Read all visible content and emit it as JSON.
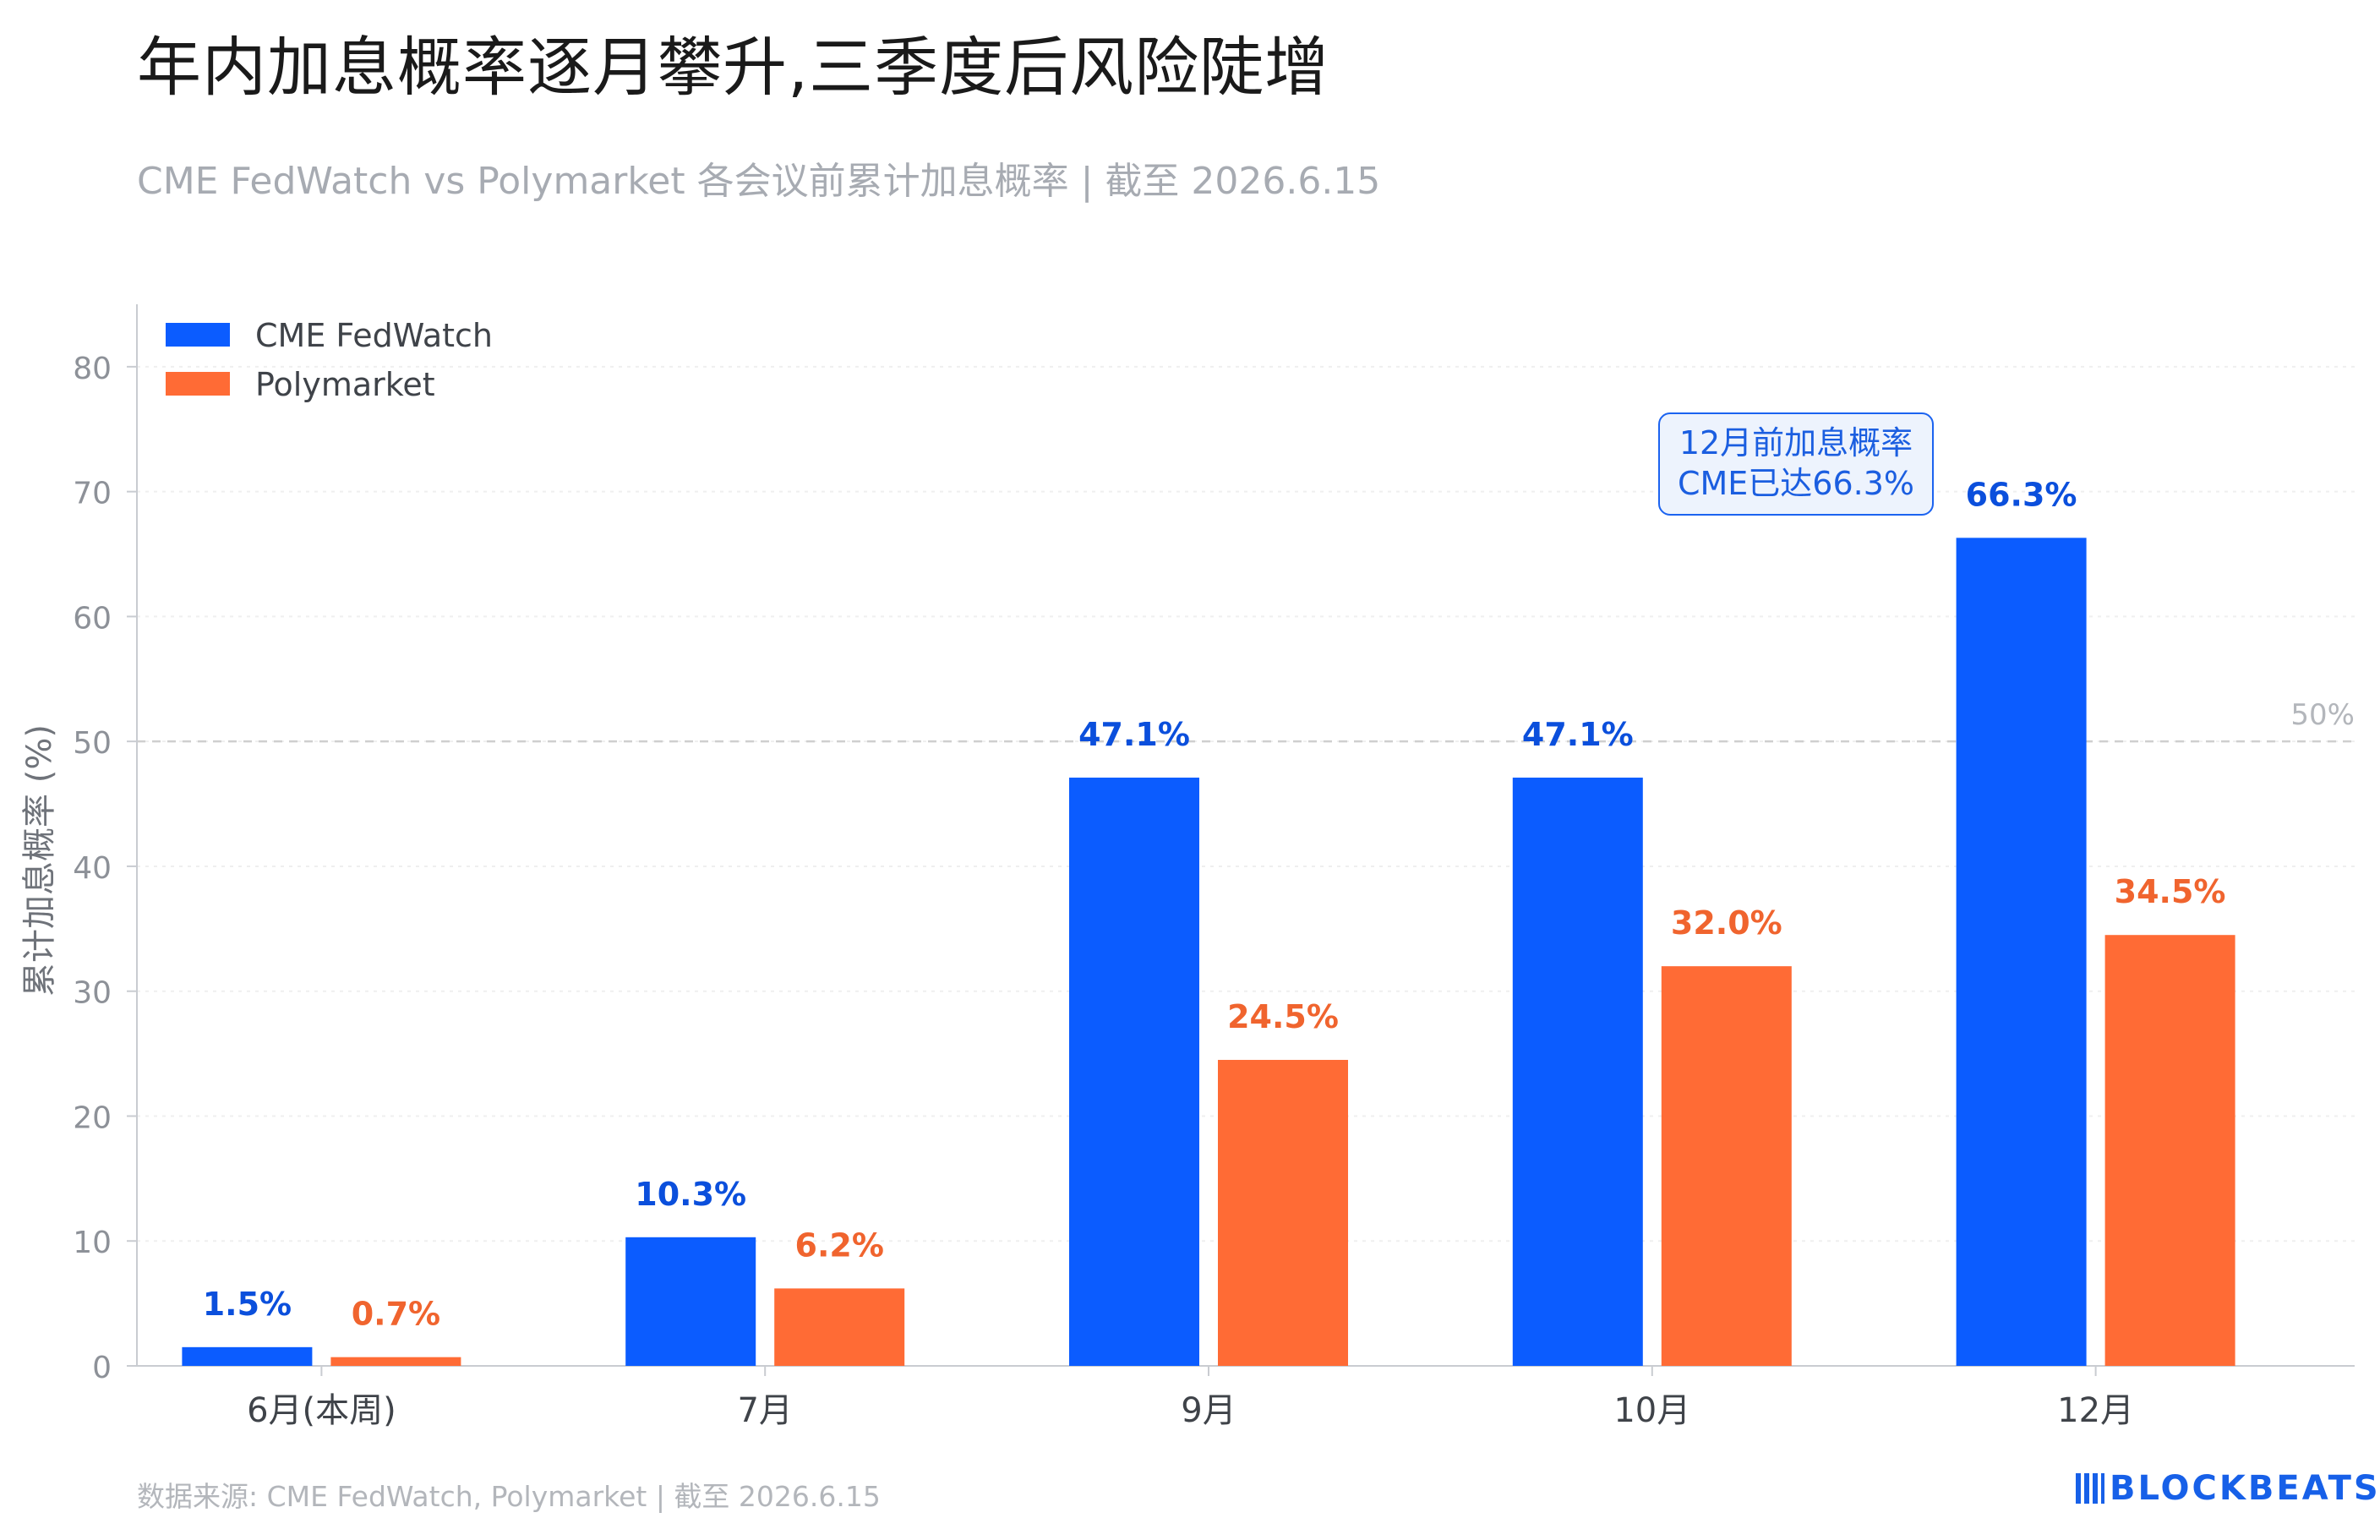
{
  "title": "年内加息概率逐月攀升,三季度后风险陡增",
  "subtitle": "CME FedWatch vs Polymarket 各会议前累计加息概率 | 截至 2026.6.15",
  "footer": {
    "source": "数据来源: CME FedWatch, Polymarket | 截至 2026.6.15",
    "brand": "BLOCKBEATS"
  },
  "callout": {
    "line1": "12月前加息概率",
    "line2": "CME已达66.3%"
  },
  "colors": {
    "cme": "#0b5cff",
    "poly": "#ff6b35",
    "cme_label": "#0b4fdc",
    "poly_label": "#f0642e",
    "axis_text": "#8d9198",
    "grid": "#efefef",
    "ref_line": "#cfcfcf"
  },
  "chart_data": {
    "type": "bar",
    "categories": [
      "6月(本周)",
      "7月",
      "9月",
      "10月",
      "12月"
    ],
    "series": [
      {
        "name": "CME FedWatch",
        "values": [
          1.5,
          10.3,
          47.1,
          47.1,
          66.3
        ],
        "labels": [
          "1.5%",
          "10.3%",
          "47.1%",
          "47.1%",
          "66.3%"
        ]
      },
      {
        "name": "Polymarket",
        "values": [
          0.7,
          6.2,
          24.5,
          32.0,
          34.5
        ],
        "labels": [
          "0.7%",
          "6.2%",
          "24.5%",
          "32.0%",
          "34.5%"
        ]
      }
    ],
    "ylabel": "累计加息概率 (%)",
    "xlabel": "",
    "ylim": [
      0,
      85
    ],
    "yticks": [
      0,
      10,
      20,
      30,
      40,
      50,
      60,
      70,
      80
    ],
    "reference_line": {
      "value": 50,
      "label": "50%"
    },
    "grid": true,
    "legend": "top-left"
  }
}
